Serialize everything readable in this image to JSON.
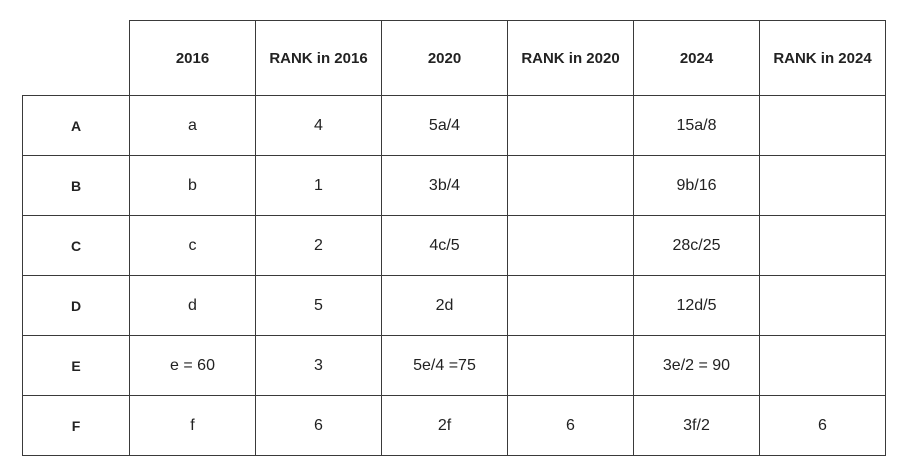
{
  "table": {
    "header": [
      "2016",
      "RANK in 2016",
      "2020",
      "RANK in 2020",
      "2024",
      "RANK in 2024"
    ],
    "rows": [
      [
        "A",
        "a",
        "4",
        "5a/4",
        null,
        "15a/8",
        null
      ],
      [
        "B",
        "b",
        "1",
        "3b/4",
        null,
        "9b/16",
        null
      ],
      [
        "C",
        "c",
        "2",
        "4c/5",
        null,
        "28c/25",
        null
      ],
      [
        "D",
        "d",
        "5",
        "2d",
        null,
        "12d/5",
        null
      ],
      [
        "E",
        "e = 60",
        "3",
        "5e/4 =75",
        null,
        "3e/2 = 90",
        null
      ],
      [
        "F",
        "f",
        "6",
        "2f",
        "6",
        "3f/2",
        "6"
      ]
    ]
  }
}
